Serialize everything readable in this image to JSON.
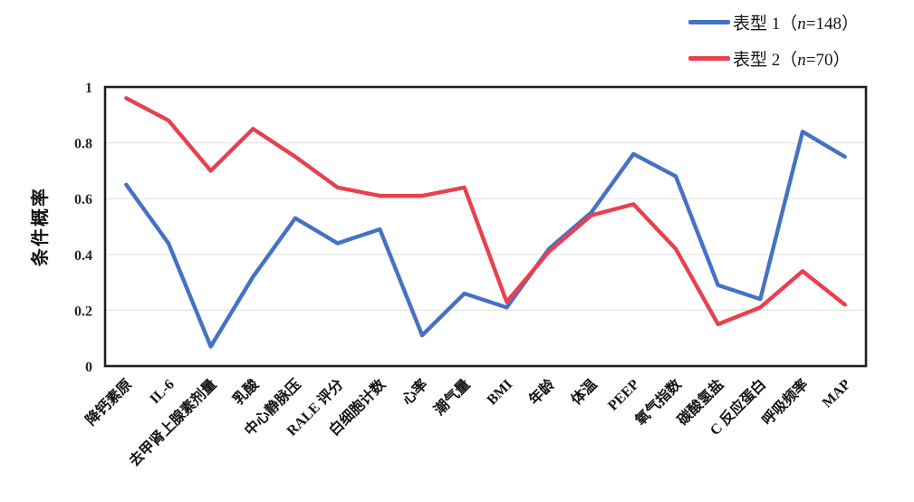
{
  "chart_data": {
    "type": "line",
    "title": "",
    "xlabel": "",
    "ylabel": "条件概率",
    "ylim": [
      0,
      1
    ],
    "yticks": [
      0,
      0.2,
      0.4,
      0.6,
      0.8,
      1
    ],
    "grid": "horizontal-only",
    "legend_position": "top-right-outside",
    "categories": [
      "降钙素原",
      "IL-6",
      "去甲肾上腺素剂量",
      "乳酸",
      "中心静脉压",
      "RALE 评分",
      "白细胞计数",
      "心率",
      "潮气量",
      "BMI",
      "年龄",
      "体温",
      "PEEP",
      "氧气指数",
      "碳酸氢盐",
      "C 反应蛋白",
      "呼吸频率",
      "MAP"
    ],
    "series": [
      {
        "name": "表型 1",
        "n": "148",
        "legend_label": "表型 1（n=148）",
        "color": "#4472C4",
        "values": [
          0.65,
          0.44,
          0.07,
          0.32,
          0.53,
          0.44,
          0.49,
          0.11,
          0.26,
          0.21,
          0.42,
          0.55,
          0.76,
          0.68,
          0.29,
          0.24,
          0.84,
          0.75
        ]
      },
      {
        "name": "表型 2",
        "n": "70",
        "legend_label": "表型 2（n=70）",
        "color": "#E8404F",
        "values": [
          0.96,
          0.88,
          0.7,
          0.85,
          0.75,
          0.64,
          0.61,
          0.61,
          0.64,
          0.23,
          0.41,
          0.54,
          0.58,
          0.42,
          0.15,
          0.21,
          0.34,
          0.22
        ]
      }
    ]
  }
}
